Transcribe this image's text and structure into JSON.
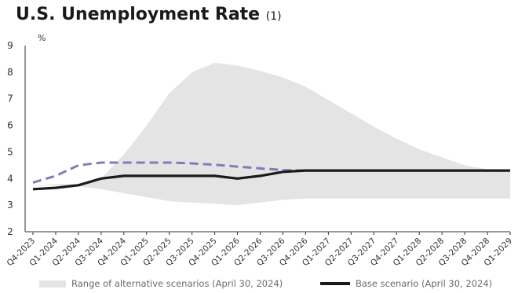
{
  "title": "U.S. Unemployment Rate",
  "title_note": "(1)",
  "chart_data": {
    "type": "line",
    "title": "U.S. Unemployment Rate",
    "ylabel": "%",
    "ylim": [
      2,
      9
    ],
    "yticks": [
      2,
      3,
      4,
      5,
      6,
      7,
      8,
      9
    ],
    "grid": false,
    "legend_position": "bottom",
    "categories": [
      "Q4-2023",
      "Q1-2024",
      "Q2-2024",
      "Q3-2024",
      "Q4-2024",
      "Q1-2025",
      "Q2-2025",
      "Q3-2025",
      "Q4-2025",
      "Q1-2026",
      "Q2-2026",
      "Q3-2026",
      "Q4-2026",
      "Q1-2027",
      "Q2-2027",
      "Q3-2027",
      "Q4-2027",
      "Q1-2028",
      "Q2-2028",
      "Q3-2028",
      "Q4-2028",
      "Q1-2029"
    ],
    "range": {
      "name": "Range of alternative scenarios (April 30, 2024)",
      "color": "#e4e4e5",
      "upper": [
        3.7,
        3.8,
        3.8,
        4.0,
        4.9,
        6.0,
        7.2,
        8.0,
        8.35,
        8.25,
        8.05,
        7.8,
        7.45,
        6.95,
        6.45,
        5.95,
        5.5,
        5.1,
        4.8,
        4.5,
        4.35,
        4.3
      ],
      "lower": [
        3.7,
        3.75,
        3.7,
        3.6,
        3.45,
        3.3,
        3.15,
        3.1,
        3.05,
        3.0,
        3.1,
        3.2,
        3.25,
        3.25,
        3.25,
        3.25,
        3.25,
        3.25,
        3.25,
        3.25,
        3.25,
        3.25
      ]
    },
    "series": [
      {
        "name": "Base scenario (April 30, 2024)",
        "color": "#1a1a1a",
        "style": "solid",
        "values": [
          3.6,
          3.65,
          3.75,
          4.0,
          4.1,
          4.1,
          4.1,
          4.1,
          4.1,
          4.0,
          4.1,
          4.25,
          4.3,
          4.3,
          4.3,
          4.3,
          4.3,
          4.3,
          4.3,
          4.3,
          4.3,
          4.3
        ]
      },
      {
        "color": "#7b7fb5",
        "style": "dashed",
        "values": [
          3.85,
          4.1,
          4.5,
          4.6,
          4.6,
          4.6,
          4.6,
          4.57,
          4.52,
          4.45,
          4.38,
          4.32,
          4.3,
          4.3,
          4.3,
          4.3,
          4.3,
          4.3,
          4.3,
          4.3,
          4.3,
          4.3
        ]
      }
    ]
  }
}
